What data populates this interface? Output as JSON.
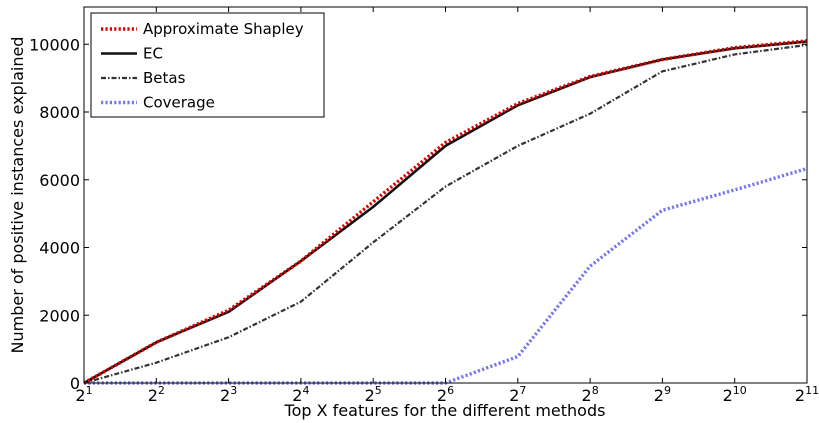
{
  "chart_data": {
    "type": "line",
    "xlabel": "Top X features for the different methods",
    "ylabel": "Number of positive instances explained",
    "x_scale": "log2",
    "x_tick_base": "2",
    "x_ticks": [
      {
        "base": "2",
        "exp": "1",
        "value": 2
      },
      {
        "base": "2",
        "exp": "2",
        "value": 4
      },
      {
        "base": "2",
        "exp": "3",
        "value": 8
      },
      {
        "base": "2",
        "exp": "4",
        "value": 16
      },
      {
        "base": "2",
        "exp": "5",
        "value": 32
      },
      {
        "base": "2",
        "exp": "6",
        "value": 64
      },
      {
        "base": "2",
        "exp": "7",
        "value": 128
      },
      {
        "base": "2",
        "exp": "8",
        "value": 256
      },
      {
        "base": "2",
        "exp": "9",
        "value": 512
      },
      {
        "base": "2",
        "exp": "10",
        "value": 1024
      },
      {
        "base": "2",
        "exp": "11",
        "value": 2048
      }
    ],
    "y_ticks": [
      "0",
      "2000",
      "4000",
      "6000",
      "8000",
      "10000"
    ],
    "y_tick_values": [
      0,
      2000,
      4000,
      6000,
      8000,
      10000
    ],
    "xlim": [
      2,
      2048
    ],
    "ylim": [
      0,
      11100
    ],
    "grid": false,
    "legend_position": "top-left",
    "x": [
      2,
      4,
      8,
      16,
      32,
      64,
      128,
      256,
      512,
      1024,
      2048
    ],
    "series": [
      {
        "name": "Approximate Shapley",
        "color": "#dd0000",
        "dash": "dotted",
        "values": [
          0,
          1200,
          2150,
          3600,
          5350,
          7100,
          8250,
          9050,
          9550,
          9900,
          10100
        ]
      },
      {
        "name": "EC",
        "color": "#111111",
        "dash": "solid",
        "values": [
          0,
          1200,
          2100,
          3600,
          5200,
          7000,
          8200,
          9030,
          9550,
          9880,
          10080
        ]
      },
      {
        "name": "Betas",
        "color": "#333333",
        "dash": "dashdot",
        "values": [
          0,
          600,
          1350,
          2400,
          4150,
          5800,
          7000,
          7950,
          9200,
          9700,
          9980
        ]
      },
      {
        "name": "Coverage",
        "color": "#7777ee",
        "dash": "dotted",
        "values": [
          0,
          0,
          0,
          0,
          0,
          0,
          780,
          3450,
          5100,
          5700,
          6330
        ]
      }
    ]
  }
}
